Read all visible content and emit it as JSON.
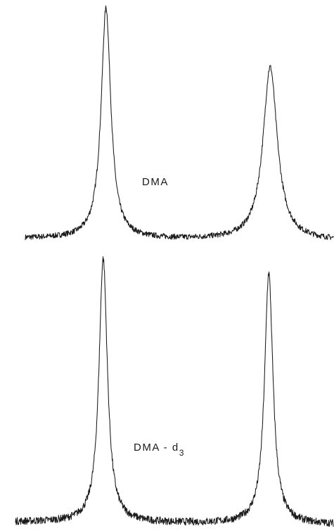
{
  "chart_data": [
    {
      "type": "line",
      "title": "",
      "xlabel": "",
      "ylabel": "",
      "grid": false,
      "axes_visible": false,
      "series": [
        {
          "label_parts": [
            "DMA"
          ],
          "peaks": [
            {
              "x": 0.262,
              "height": 1.0,
              "width": 0.019,
              "shape": "lorentzian"
            },
            {
              "x": 0.795,
              "height": 0.75,
              "width": 0.028,
              "shape": "lorentzian"
            }
          ],
          "baseline_tilt": 0.02,
          "noise_level": 0.012
        }
      ]
    },
    {
      "type": "line",
      "title": "",
      "xlabel": "",
      "ylabel": "",
      "grid": false,
      "axes_visible": false,
      "series": [
        {
          "label_parts": [
            "DMA - d",
            "3"
          ],
          "peaks": [
            {
              "x": 0.276,
              "height": 1.0,
              "width": 0.016,
              "shape": "lorentzian"
            },
            {
              "x": 0.797,
              "height": 0.95,
              "width": 0.016,
              "shape": "lorentzian"
            }
          ],
          "baseline_tilt": 0.02,
          "noise_level": 0.014
        }
      ]
    }
  ]
}
